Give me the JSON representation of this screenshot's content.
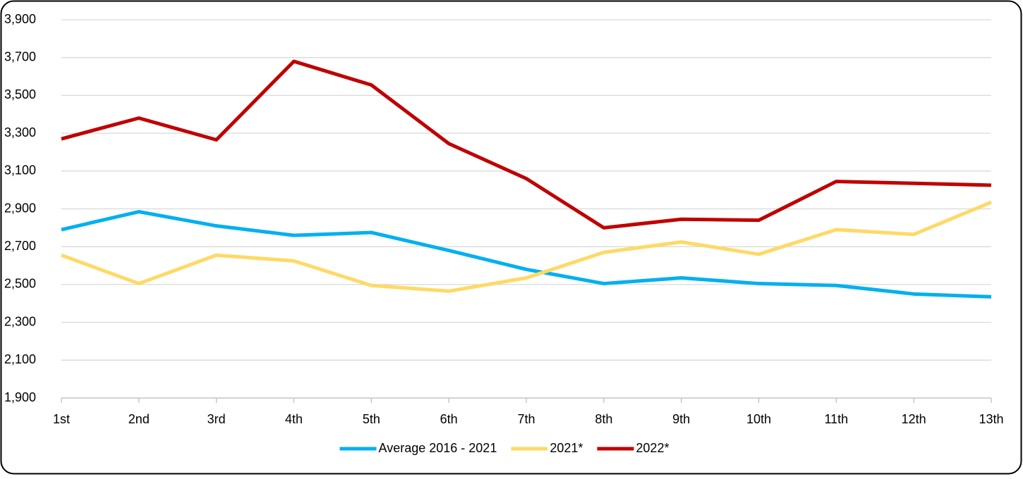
{
  "chart_data": {
    "type": "line",
    "categories": [
      "1st",
      "2nd",
      "3rd",
      "4th",
      "5th",
      "6th",
      "7th",
      "8th",
      "9th",
      "10th",
      "11th",
      "12th",
      "13th"
    ],
    "series": [
      {
        "name": "Average 2016 - 2021",
        "color": "#00b0f0",
        "values": [
          2790,
          2885,
          2810,
          2760,
          2775,
          2680,
          2580,
          2505,
          2535,
          2505,
          2495,
          2450,
          2435
        ]
      },
      {
        "name": "2021*",
        "color": "#ffd966",
        "values": [
          2655,
          2505,
          2655,
          2625,
          2495,
          2465,
          2535,
          2670,
          2725,
          2660,
          2790,
          2765,
          2935
        ]
      },
      {
        "name": "2022*",
        "color": "#c00000",
        "values": [
          3270,
          3380,
          3265,
          3680,
          3555,
          3245,
          3060,
          2800,
          2845,
          2840,
          3045,
          3035,
          3025
        ]
      }
    ],
    "ylim": [
      1900,
      3900
    ],
    "yticks": [
      {
        "value": 1900,
        "label": "1,900"
      },
      {
        "value": 2100,
        "label": "2,100"
      },
      {
        "value": 2300,
        "label": "2,300"
      },
      {
        "value": 2500,
        "label": "2,500"
      },
      {
        "value": 2700,
        "label": "2,700"
      },
      {
        "value": 2900,
        "label": "2,900"
      },
      {
        "value": 3100,
        "label": "3,100"
      },
      {
        "value": 3300,
        "label": "3,300"
      },
      {
        "value": 3500,
        "label": "3,500"
      },
      {
        "value": 3700,
        "label": "3,700"
      },
      {
        "value": 3900,
        "label": "3,900"
      }
    ],
    "grid": true,
    "legend": "bottom"
  }
}
